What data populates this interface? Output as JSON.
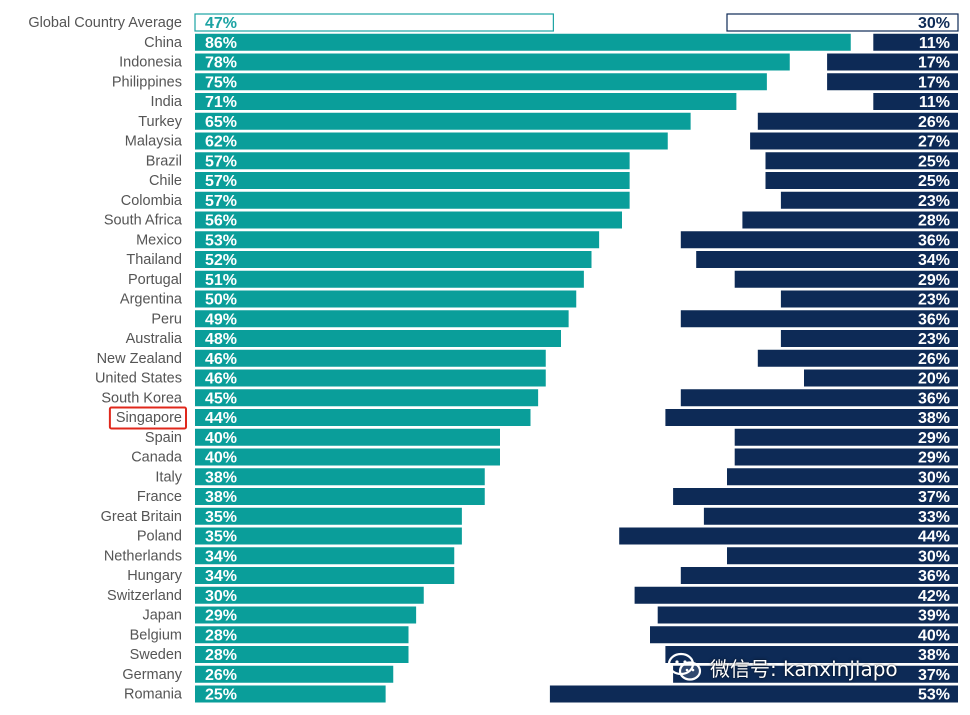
{
  "chart_data": {
    "type": "bar",
    "layout": "paired horizontal bars",
    "series": [
      {
        "color": "#0a9e9a",
        "outline_color": "#1ba3a3"
      },
      {
        "color": "#0d2a56",
        "outline_color": "#0d2a56"
      }
    ],
    "average_label": "Global Country Average",
    "average": [
      "47%",
      "30%"
    ],
    "highlight_category": "Singapore",
    "highlight_color": "#e0281c",
    "categories": [
      "China",
      "Indonesia",
      "Philippines",
      "India",
      "Turkey",
      "Malaysia",
      "Brazil",
      "Chile",
      "Colombia",
      "South Africa",
      "Mexico",
      "Thailand",
      "Portugal",
      "Argentina",
      "Peru",
      "Australia",
      "New Zealand",
      "United States",
      "South Korea",
      "Singapore",
      "Spain",
      "Canada",
      "Italy",
      "France",
      "Great Britain",
      "Poland",
      "Netherlands",
      "Hungary",
      "Switzerland",
      "Japan",
      "Belgium",
      "Sweden",
      "Germany",
      "Romania"
    ],
    "left_values": [
      86,
      78,
      75,
      71,
      65,
      62,
      57,
      57,
      57,
      56,
      53,
      52,
      51,
      50,
      49,
      48,
      46,
      46,
      45,
      44,
      40,
      40,
      38,
      38,
      35,
      35,
      34,
      34,
      30,
      29,
      28,
      28,
      26,
      25
    ],
    "right_values": [
      11,
      17,
      17,
      11,
      26,
      27,
      25,
      25,
      23,
      28,
      36,
      34,
      29,
      23,
      36,
      23,
      26,
      20,
      36,
      38,
      29,
      29,
      30,
      37,
      33,
      44,
      30,
      36,
      42,
      39,
      40,
      38,
      37,
      53
    ],
    "value_format": "{v}%"
  },
  "watermark": {
    "text": "微信号: kanxinjiapo",
    "icon": "wechat-icon"
  }
}
